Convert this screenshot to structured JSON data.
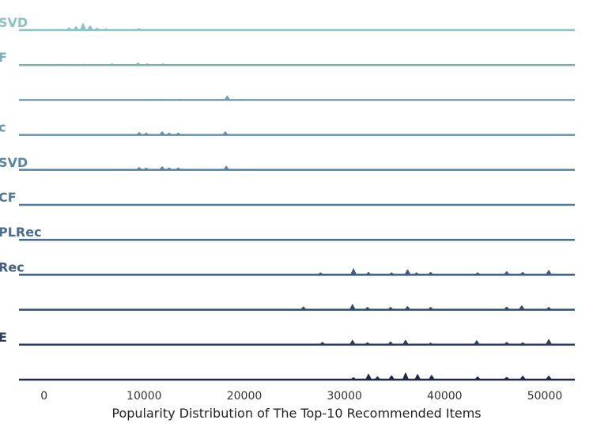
{
  "chart_data": {
    "type": "area",
    "subtype": "ridgeline",
    "title": "",
    "xlabel": "Popularity Distribution of The Top-10 Recommended Items",
    "ylabel": "",
    "xlim": [
      -2500,
      53000
    ],
    "xticks": [
      0,
      10000,
      20000,
      30000,
      40000,
      50000
    ],
    "grid": false,
    "legend": "none",
    "series": [
      {
        "name": "SVD",
        "color": "#8cc3c5",
        "peaks": [
          [
            2500,
            0.35
          ],
          [
            3200,
            0.5
          ],
          [
            3900,
            0.9
          ],
          [
            4600,
            0.6
          ],
          [
            5300,
            0.3
          ],
          [
            6200,
            0.2
          ],
          [
            9500,
            0.25
          ]
        ]
      },
      {
        "name": "F",
        "color": "#79afb9",
        "peaks": [
          [
            1500,
            0.15
          ],
          [
            4000,
            0.15
          ],
          [
            6800,
            0.2
          ],
          [
            9400,
            0.3
          ],
          [
            10300,
            0.2
          ],
          [
            11900,
            0.2
          ]
        ]
      },
      {
        "name": "",
        "color": "#6fa0b3",
        "peaks": [
          [
            10200,
            0.15
          ],
          [
            11800,
            0.15
          ],
          [
            13600,
            0.15
          ],
          [
            18300,
            0.55
          ],
          [
            19800,
            0.15
          ]
        ]
      },
      {
        "name": "c",
        "color": "#6393ad",
        "peaks": [
          [
            9500,
            0.35
          ],
          [
            10200,
            0.3
          ],
          [
            11800,
            0.45
          ],
          [
            12500,
            0.3
          ],
          [
            13400,
            0.3
          ],
          [
            18100,
            0.45
          ]
        ]
      },
      {
        "name": "SVD",
        "color": "#5a86a4",
        "peaks": [
          [
            9500,
            0.35
          ],
          [
            10200,
            0.3
          ],
          [
            11800,
            0.45
          ],
          [
            12500,
            0.3
          ],
          [
            13400,
            0.3
          ],
          [
            18200,
            0.5
          ]
        ]
      },
      {
        "name": "CF",
        "color": "#52789b",
        "peaks": [
          [
            36100,
            0.1
          ],
          [
            50200,
            0.1
          ]
        ]
      },
      {
        "name": "PLRec",
        "color": "#4a6b91",
        "peaks": []
      },
      {
        "name": "Rec",
        "color": "#3f5c83",
        "peaks": [
          [
            27600,
            0.3
          ],
          [
            30900,
            0.8
          ],
          [
            32400,
            0.35
          ],
          [
            34700,
            0.3
          ],
          [
            36300,
            0.7
          ],
          [
            37200,
            0.3
          ],
          [
            38600,
            0.35
          ],
          [
            43300,
            0.3
          ],
          [
            46200,
            0.45
          ],
          [
            47800,
            0.35
          ],
          [
            50400,
            0.6
          ]
        ]
      },
      {
        "name": "",
        "color": "#344d72",
        "peaks": [
          [
            25900,
            0.4
          ],
          [
            30800,
            0.7
          ],
          [
            32300,
            0.35
          ],
          [
            34600,
            0.35
          ],
          [
            36300,
            0.45
          ],
          [
            38600,
            0.35
          ],
          [
            46200,
            0.4
          ],
          [
            47700,
            0.55
          ],
          [
            50400,
            0.35
          ]
        ]
      },
      {
        "name": "E",
        "color": "#2b3d60",
        "peaks": [
          [
            27800,
            0.35
          ],
          [
            30800,
            0.6
          ],
          [
            32300,
            0.3
          ],
          [
            34600,
            0.4
          ],
          [
            36100,
            0.6
          ],
          [
            38600,
            0.25
          ],
          [
            43200,
            0.55
          ],
          [
            46200,
            0.35
          ],
          [
            47800,
            0.3
          ],
          [
            50400,
            0.7
          ]
        ]
      },
      {
        "name": "",
        "color": "#1f2a4a",
        "peaks": [
          [
            30900,
            0.3
          ],
          [
            32400,
            0.75
          ],
          [
            33300,
            0.4
          ],
          [
            34700,
            0.55
          ],
          [
            36100,
            0.9
          ],
          [
            37300,
            0.7
          ],
          [
            38700,
            0.6
          ],
          [
            43300,
            0.4
          ],
          [
            46200,
            0.35
          ],
          [
            47800,
            0.5
          ],
          [
            50400,
            0.5
          ]
        ]
      }
    ]
  }
}
